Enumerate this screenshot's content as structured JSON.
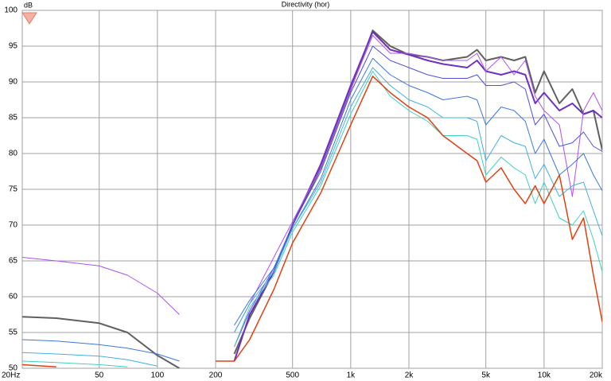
{
  "chart_data": {
    "type": "line",
    "title": "Directivity (hor)",
    "ylabel": "dB",
    "xscale": "log",
    "grid": true,
    "xlim": [
      20,
      20000
    ],
    "ylim": [
      50,
      100
    ],
    "xticks": [
      {
        "value": 20,
        "label": "20Hz"
      },
      50,
      100,
      200,
      500,
      {
        "value": 1000,
        "label": "1k"
      },
      {
        "value": 2000,
        "label": "2k"
      },
      {
        "value": 5000,
        "label": "5k"
      },
      {
        "value": 10000,
        "label": "10k"
      },
      {
        "value": 20000,
        "label": "20k"
      }
    ],
    "yticks": [
      50,
      55,
      60,
      65,
      70,
      75,
      80,
      85,
      90,
      95,
      100
    ],
    "x": [
      20,
      30,
      50,
      70,
      100,
      130,
      200,
      250,
      300,
      400,
      500,
      700,
      1000,
      1300,
      1600,
      2000,
      2500,
      3000,
      4000,
      4500,
      5000,
      6000,
      7000,
      8000,
      9000,
      10000,
      12000,
      14000,
      16000,
      18000,
      20000
    ],
    "series": [
      {
        "color": "#606060",
        "width": 2,
        "values": [
          57.2,
          57,
          56.3,
          55,
          51.8,
          50,
          null,
          52,
          57,
          63.5,
          70,
          78,
          89,
          97.2,
          95,
          93.8,
          93.5,
          93,
          93.5,
          94.5,
          93,
          93.5,
          93,
          93.5,
          88.5,
          91.5,
          87,
          89,
          85.5,
          86,
          80.5
        ]
      },
      {
        "color": "#7030c0",
        "width": 2,
        "values": [
          null,
          null,
          null,
          null,
          null,
          null,
          null,
          51,
          57.5,
          63.5,
          70,
          78.5,
          89.5,
          97,
          94.5,
          93.8,
          93,
          92.5,
          92,
          93,
          91.5,
          91,
          91.5,
          91,
          87,
          88.5,
          86,
          87,
          85.5,
          86,
          85
        ]
      },
      {
        "color": "#b050f0",
        "width": 1,
        "values": [
          65.5,
          65,
          64.3,
          63,
          60.5,
          57.5,
          null,
          55,
          59,
          65.5,
          70.5,
          78,
          89,
          96.5,
          94,
          94,
          93.5,
          93,
          93,
          94,
          91.5,
          93.5,
          91,
          93,
          88,
          86,
          84,
          74,
          86,
          88.5,
          86
        ]
      },
      {
        "color": "#5050e0",
        "width": 1,
        "values": [
          null,
          null,
          null,
          null,
          null,
          null,
          null,
          53,
          58,
          64,
          70,
          77.5,
          88.5,
          95,
          93,
          92,
          91,
          90.5,
          90.5,
          91,
          89.5,
          89.5,
          90,
          89,
          84,
          85.5,
          81,
          81.5,
          83,
          81,
          80.3
        ]
      },
      {
        "color": "#3a78e0",
        "width": 1,
        "values": [
          54,
          53.8,
          53.3,
          52.8,
          52,
          51,
          null,
          56,
          59.5,
          64,
          69.5,
          76.5,
          87.5,
          93.3,
          91,
          89.5,
          88.5,
          87.5,
          88,
          87.5,
          84,
          86.5,
          86,
          84.5,
          80,
          82,
          77,
          78.5,
          80,
          77,
          74.8
        ]
      },
      {
        "color": "#40b0e0",
        "width": 1,
        "values": [
          52.2,
          52,
          51.7,
          51.2,
          50.3,
          null,
          null,
          55,
          59,
          63.5,
          69.5,
          76,
          86.5,
          92,
          89.5,
          87.5,
          86.5,
          85,
          85,
          84.5,
          79,
          82.5,
          81.5,
          81,
          76.5,
          78.5,
          74,
          75.5,
          76,
          72,
          68.5
        ]
      },
      {
        "color": "#40d0c0",
        "width": 1,
        "values": [
          51,
          50.8,
          50.5,
          50.2,
          null,
          null,
          null,
          53,
          58.5,
          63,
          69,
          75.5,
          85.5,
          91.5,
          88,
          86,
          84.5,
          82.5,
          82.5,
          82,
          77,
          79.5,
          78,
          77,
          73,
          76,
          71,
          70,
          72,
          68,
          63.5
        ]
      },
      {
        "color": "#e04010",
        "width": 1.5,
        "values": [
          50.5,
          50.2,
          null,
          null,
          null,
          null,
          51,
          51,
          54,
          61,
          67.5,
          74.5,
          84,
          90.8,
          88.5,
          86.5,
          85,
          82.5,
          80,
          79,
          76,
          78,
          75,
          73,
          75.5,
          73,
          77,
          68,
          71,
          63,
          56.5
        ]
      }
    ]
  }
}
